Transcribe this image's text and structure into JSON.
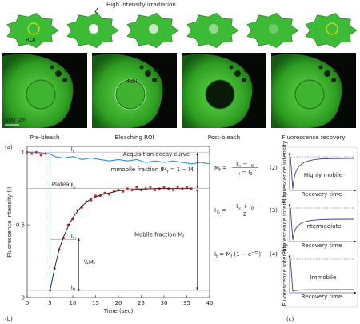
{
  "panel_a": {
    "irradiation_label": "High intensity irradiation",
    "cell_roi_label": "ROI",
    "image_roi_label": "ROI",
    "scale_label": "100 μm",
    "image_labels": [
      "Pre-bleach",
      "Bleaching ROI",
      "Post-bleach",
      "Fluorescence recovery"
    ],
    "label": "(a)"
  },
  "chart_data": {
    "type": "line",
    "label": "(b)",
    "xlabel": "Time (sec)",
    "ylabel": "Fluorescence intensity (I)",
    "xlim": [
      0,
      40
    ],
    "ylim": [
      0,
      1.04
    ],
    "xticks": [
      0,
      5,
      10,
      15,
      20,
      25,
      30,
      35,
      40
    ],
    "yticks": [
      0,
      0.5,
      1
    ],
    "series": [
      {
        "name": "Acquisition decay curve",
        "color": "#2b8fd0",
        "x": [
          0,
          2,
          4,
          5,
          6,
          8,
          10,
          12,
          14,
          16,
          18,
          20,
          22,
          24,
          26,
          28,
          30,
          32,
          34,
          36,
          38,
          40
        ],
        "values": [
          1.0,
          1.0,
          0.99,
          0.99,
          0.97,
          0.96,
          0.97,
          0.95,
          0.96,
          0.95,
          0.94,
          0.95,
          0.94,
          0.95,
          0.93,
          0.94,
          0.93,
          0.94,
          0.93,
          0.92,
          0.93,
          0.92
        ]
      },
      {
        "color": "#e0202a",
        "x": [
          0,
          1,
          2,
          3,
          4,
          5,
          6,
          7,
          8,
          9,
          10,
          11,
          12,
          13,
          14,
          15,
          16,
          17,
          18,
          19,
          20,
          21,
          22,
          23,
          24,
          25,
          26,
          27,
          28,
          29,
          30,
          31,
          32,
          33,
          34,
          35,
          36
        ],
        "values": [
          1.0,
          0.99,
          1.0,
          0.98,
          0.99,
          0.05,
          0.2,
          0.33,
          0.41,
          0.5,
          0.54,
          0.6,
          0.62,
          0.66,
          0.67,
          0.7,
          0.7,
          0.72,
          0.71,
          0.73,
          0.74,
          0.73,
          0.75,
          0.74,
          0.76,
          0.74,
          0.75,
          0.76,
          0.74,
          0.75,
          0.76,
          0.75,
          0.74,
          0.76,
          0.75,
          0.76,
          0.75
        ]
      },
      {
        "color": "#111111",
        "x": [
          5,
          6,
          7,
          8,
          9,
          10,
          12,
          14,
          16,
          18,
          20,
          24,
          28,
          32,
          36
        ],
        "values": [
          0.05,
          0.2,
          0.33,
          0.42,
          0.49,
          0.55,
          0.63,
          0.68,
          0.705,
          0.72,
          0.735,
          0.745,
          0.75,
          0.75,
          0.75
        ]
      }
    ],
    "reference_lines": [
      {
        "value": 1,
        "label": [
          "I",
          {
            "sub": "i"
          }
        ]
      },
      {
        "value": 0.75,
        "label": [
          "I",
          {
            "sub": "∞"
          }
        ]
      },
      {
        "value": 0.4,
        "label": [
          "I",
          {
            "sub": "½"
          }
        ]
      },
      {
        "value": 0.05,
        "label": [
          "I",
          {
            "sub": "0"
          }
        ]
      }
    ],
    "plateau_label": "Plateau",
    "immobile_label": [
      "Immobile fraction   IM",
      {
        "sub": "f"
      },
      " = 1 − M",
      {
        "sub": "f"
      }
    ],
    "mobile_label": [
      "Mobile fraction M",
      {
        "sub": "f"
      }
    ],
    "half_label": [
      "½M",
      {
        "sub": "f"
      }
    ]
  },
  "equations": [
    {
      "lhs": [
        "M",
        {
          "sub": "f"
        },
        " ="
      ],
      "num": [
        "I",
        {
          "sub": "∞"
        },
        " − I",
        {
          "sub": "0"
        }
      ],
      "den": [
        "I",
        {
          "sub": "i"
        },
        " − I",
        {
          "sub": "0"
        }
      ],
      "number": "(2)"
    },
    {
      "lhs": [
        "I",
        {
          "sub": "½"
        },
        " ="
      ],
      "num": [
        "I",
        {
          "sub": "∞"
        },
        " + I",
        {
          "sub": "0"
        }
      ],
      "den": [
        "2"
      ],
      "number": "(3)"
    },
    {
      "lhs": [
        "I",
        {
          "sub": "t"
        },
        " = M",
        {
          "sub": "f"
        },
        " "
      ],
      "body": [
        "(1 − e",
        {
          "sup": "−τt"
        },
        ")"
      ],
      "number": "(4)"
    }
  ],
  "panel_c": {
    "label": "(c)",
    "panels": [
      {
        "text": "Highly mobile",
        "y_label": "Fluorescence intensity",
        "x_label": "Recovery time"
      },
      {
        "text": "Intermediate",
        "y_label": "Fluorescence intensity",
        "x_label": "Recovery time"
      },
      {
        "text": "Immobile",
        "y_label": "Fluorescence intensity",
        "x_label": "Recovery time"
      }
    ]
  }
}
